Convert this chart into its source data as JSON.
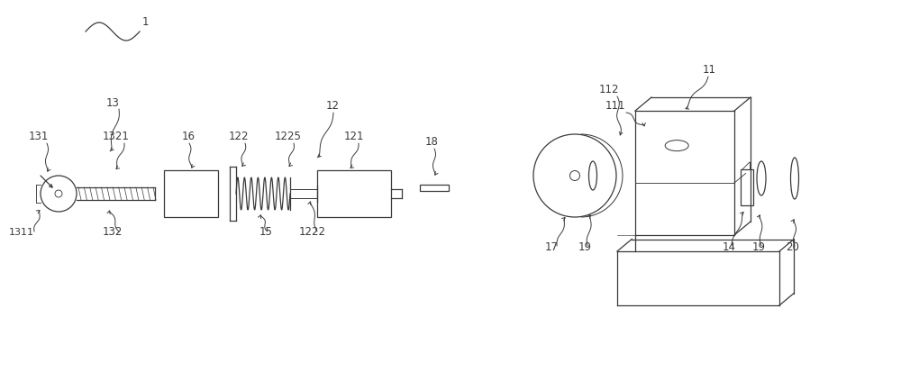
{
  "bg_color": "#ffffff",
  "line_color": "#3a3a3a",
  "label_color": "#000000",
  "fig_width": 10.0,
  "fig_height": 4.33,
  "dpi": 100
}
